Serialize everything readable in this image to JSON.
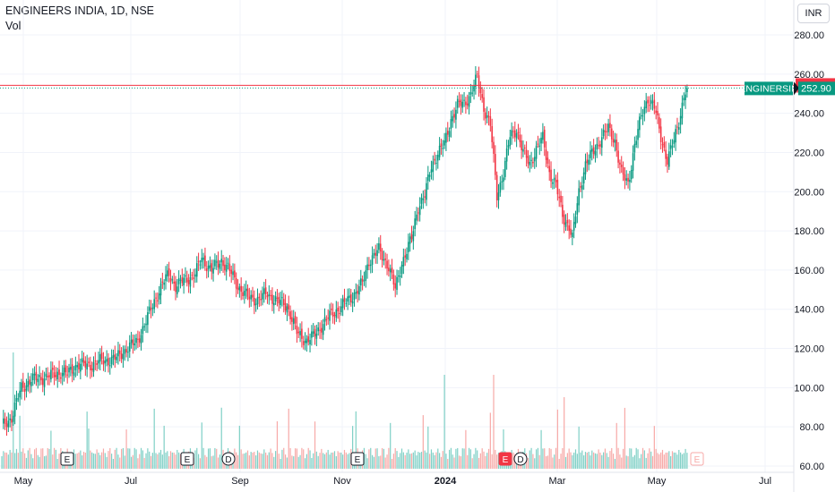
{
  "header": {
    "title": "ENGINEERS INDIA, 1D, NSE",
    "sub": "Vol",
    "currency": "INR"
  },
  "chart_data": {
    "type": "candlestick",
    "y_axis": {
      "ticks": [
        60,
        80,
        100,
        120,
        140,
        160,
        180,
        200,
        220,
        240,
        260,
        280
      ],
      "ylim": [
        58,
        286
      ]
    },
    "x_axis": {
      "ticks": [
        "May",
        "Jul",
        "Sep",
        "Nov",
        "2024",
        "Mar",
        "May",
        "Jul"
      ]
    },
    "price_line": {
      "label": "254.25",
      "value": 254.25,
      "color": "#f23645"
    },
    "last_price": {
      "symbol": "ENGINERSIN",
      "label": "252.90",
      "value": 252.9,
      "color": "#089981"
    },
    "colors": {
      "up": "#089981",
      "down": "#f23645",
      "vol_up": "#7fd0c6",
      "vol_down": "#f7a9a7"
    },
    "markers": [
      {
        "month": "Jun",
        "label": "E"
      },
      {
        "month": "Aug",
        "label": "E"
      },
      {
        "month": "Aug",
        "label": "D"
      },
      {
        "month": "Nov",
        "label": "E"
      },
      {
        "month": "Feb",
        "label": "E",
        "accent": true
      },
      {
        "month": "Feb",
        "label": "D"
      },
      {
        "month": "May",
        "label": "E",
        "faded": true
      }
    ],
    "path": [
      [
        0,
        80
      ],
      [
        6,
        85
      ],
      [
        12,
        100
      ],
      [
        18,
        104
      ],
      [
        24,
        105
      ],
      [
        30,
        106
      ],
      [
        36,
        108
      ],
      [
        40,
        107
      ],
      [
        46,
        112
      ],
      [
        52,
        111
      ],
      [
        58,
        113
      ],
      [
        64,
        114
      ],
      [
        70,
        115
      ],
      [
        76,
        120
      ],
      [
        82,
        123
      ],
      [
        88,
        134
      ],
      [
        94,
        146
      ],
      [
        98,
        153
      ],
      [
        102,
        158
      ],
      [
        106,
        152
      ],
      [
        112,
        155
      ],
      [
        118,
        158
      ],
      [
        122,
        166
      ],
      [
        128,
        160
      ],
      [
        134,
        165
      ],
      [
        138,
        161
      ],
      [
        144,
        152
      ],
      [
        150,
        146
      ],
      [
        156,
        145
      ],
      [
        162,
        148
      ],
      [
        168,
        144
      ],
      [
        174,
        142
      ],
      [
        180,
        128
      ],
      [
        186,
        124
      ],
      [
        190,
        126
      ],
      [
        196,
        133
      ],
      [
        202,
        138
      ],
      [
        208,
        142
      ],
      [
        214,
        147
      ],
      [
        220,
        153
      ],
      [
        224,
        165
      ],
      [
        230,
        170
      ],
      [
        236,
        162
      ],
      [
        240,
        150
      ],
      [
        244,
        164
      ],
      [
        250,
        176
      ],
      [
        254,
        193
      ],
      [
        258,
        198
      ],
      [
        262,
        213
      ],
      [
        266,
        220
      ],
      [
        270,
        224
      ],
      [
        274,
        237
      ],
      [
        278,
        244
      ],
      [
        282,
        245
      ],
      [
        286,
        250
      ],
      [
        290,
        258
      ],
      [
        294,
        243
      ],
      [
        298,
        234
      ],
      [
        302,
        198
      ],
      [
        306,
        210
      ],
      [
        310,
        228
      ],
      [
        314,
        232
      ],
      [
        318,
        220
      ],
      [
        322,
        214
      ],
      [
        326,
        222
      ],
      [
        330,
        227
      ],
      [
        334,
        210
      ],
      [
        338,
        203
      ],
      [
        342,
        188
      ],
      [
        346,
        182
      ],
      [
        348,
        176
      ],
      [
        352,
        200
      ],
      [
        356,
        214
      ],
      [
        362,
        222
      ],
      [
        366,
        228
      ],
      [
        370,
        232
      ],
      [
        374,
        226
      ],
      [
        378,
        209
      ],
      [
        382,
        204
      ],
      [
        386,
        224
      ],
      [
        390,
        238
      ],
      [
        394,
        248
      ],
      [
        398,
        243
      ],
      [
        402,
        228
      ],
      [
        406,
        216
      ],
      [
        410,
        226
      ],
      [
        414,
        240
      ],
      [
        416,
        249
      ],
      [
        418,
        252.9
      ]
    ]
  }
}
